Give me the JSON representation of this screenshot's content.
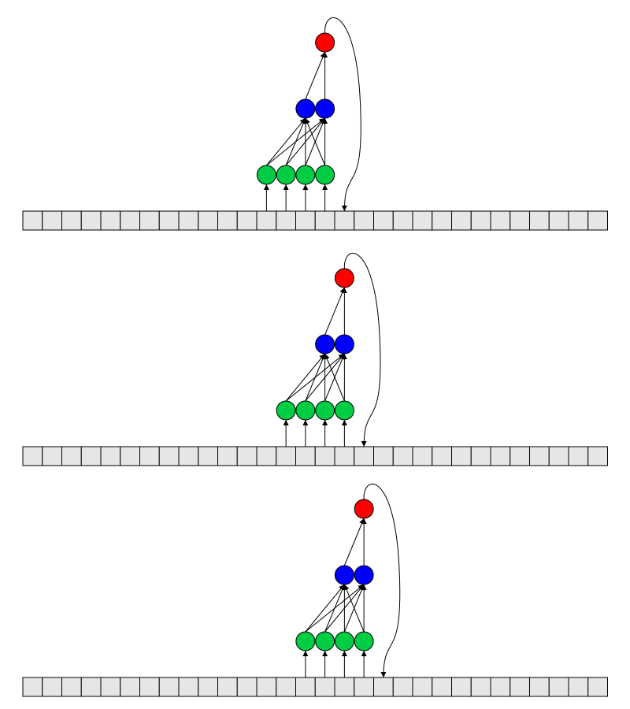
{
  "diagram": {
    "description_free": true,
    "tape_cell_count": 30,
    "panels": [
      {
        "window_start_cell": 12,
        "output_cell": 16
      },
      {
        "window_start_cell": 13,
        "output_cell": 17
      },
      {
        "window_start_cell": 14,
        "output_cell": 18
      }
    ],
    "layers": {
      "input_node_count": 4,
      "hidden_node_count": 2,
      "output_node_count": 1
    },
    "colors": {
      "input_node": "#00cc44",
      "hidden_node": "#0000ff",
      "output_node": "#ff0000",
      "tape_cell_fill": "#e6e6e6",
      "stroke": "#000000"
    }
  }
}
